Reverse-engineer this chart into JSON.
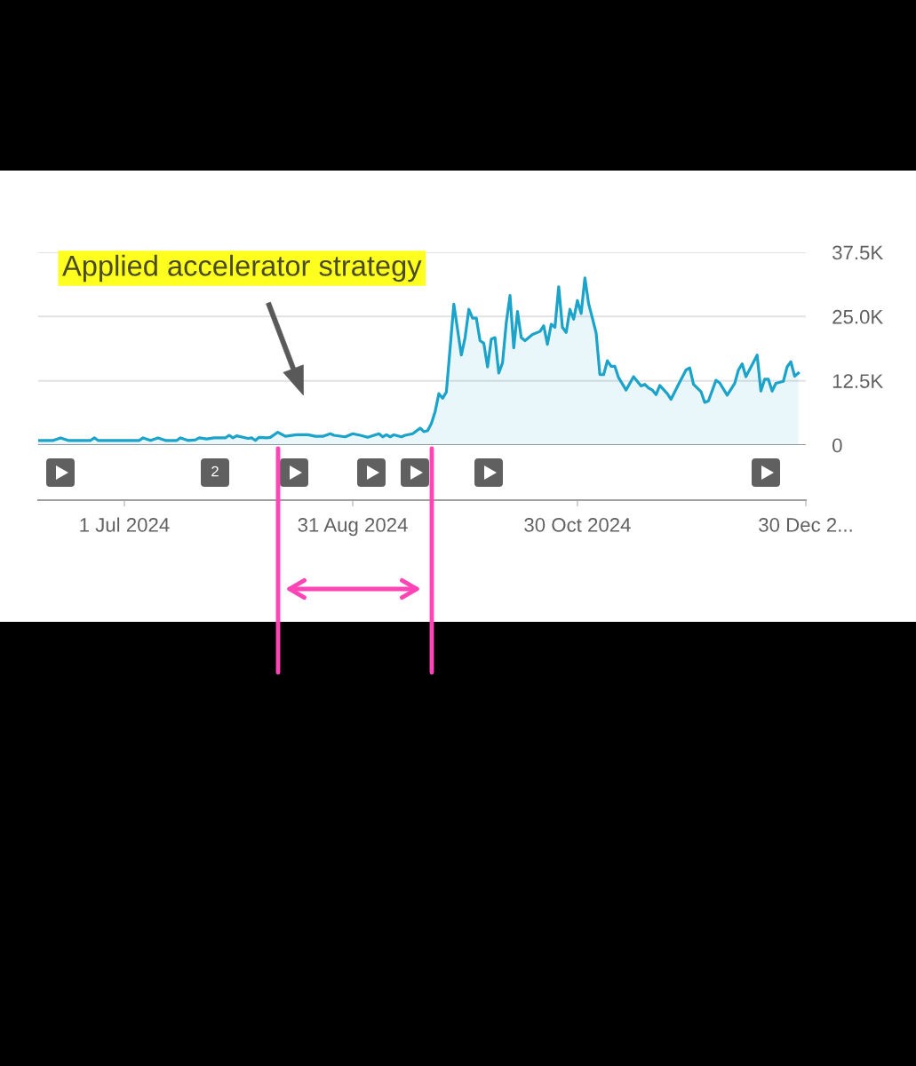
{
  "chart_data": {
    "type": "area",
    "x": [
      "2024-06-08",
      "2024-06-12",
      "2024-06-14",
      "2024-06-16",
      "2024-06-22",
      "2024-06-23",
      "2024-06-24",
      "2024-07-05",
      "2024-07-06",
      "2024-07-08",
      "2024-07-10",
      "2024-07-12",
      "2024-07-15",
      "2024-07-16",
      "2024-07-18",
      "2024-07-20",
      "2024-07-21",
      "2024-07-23",
      "2024-07-25",
      "2024-07-28",
      "2024-07-29",
      "2024-07-30",
      "2024-07-31",
      "2024-08-03",
      "2024-08-04",
      "2024-08-05",
      "2024-08-06",
      "2024-08-08",
      "2024-08-09",
      "2024-08-11",
      "2024-08-13",
      "2024-08-16",
      "2024-08-19",
      "2024-08-21",
      "2024-08-23",
      "2024-08-25",
      "2024-08-26",
      "2024-08-29",
      "2024-08-31",
      "2024-09-02",
      "2024-09-04",
      "2024-09-07",
      "2024-09-08",
      "2024-09-09",
      "2024-09-10",
      "2024-09-11",
      "2024-09-13",
      "2024-09-14",
      "2024-09-16",
      "2024-09-18",
      "2024-09-19",
      "2024-09-20",
      "2024-09-21",
      "2024-09-22",
      "2024-09-23",
      "2024-09-24",
      "2024-09-25",
      "2024-09-27",
      "2024-09-29",
      "2024-09-30",
      "2024-10-01",
      "2024-10-02",
      "2024-10-03",
      "2024-10-04",
      "2024-10-05",
      "2024-10-06",
      "2024-10-07",
      "2024-10-08",
      "2024-10-09",
      "2024-10-10",
      "2024-10-11",
      "2024-10-12",
      "2024-10-13",
      "2024-10-14",
      "2024-10-15",
      "2024-10-16",
      "2024-10-18",
      "2024-10-20",
      "2024-10-21",
      "2024-10-22",
      "2024-10-23",
      "2024-10-24",
      "2024-10-25",
      "2024-10-26",
      "2024-10-27",
      "2024-10-28",
      "2024-10-29",
      "2024-10-30",
      "2024-10-31",
      "2024-11-01",
      "2024-11-02",
      "2024-11-03",
      "2024-11-04",
      "2024-11-05",
      "2024-11-06",
      "2024-11-07",
      "2024-11-08",
      "2024-11-09",
      "2024-11-10",
      "2024-11-12",
      "2024-11-14",
      "2024-11-16",
      "2024-11-17",
      "2024-11-18",
      "2024-11-19",
      "2024-11-20",
      "2024-11-21",
      "2024-11-23",
      "2024-11-24",
      "2024-11-26",
      "2024-11-28",
      "2024-11-29",
      "2024-11-30",
      "2024-12-02",
      "2024-12-03",
      "2024-12-04",
      "2024-12-06",
      "2024-12-07",
      "2024-12-09",
      "2024-12-11",
      "2024-12-12",
      "2024-12-13",
      "2024-12-14",
      "2024-12-17",
      "2024-12-18",
      "2024-12-19",
      "2024-12-20",
      "2024-12-21",
      "2024-12-22",
      "2024-12-24",
      "2024-12-25",
      "2024-12-26",
      "2024-12-27",
      "2024-12-28"
    ],
    "series": [
      {
        "color": "#1ba3c9",
        "values": [
          900,
          900,
          1400,
          900,
          900,
          1400,
          900,
          900,
          1400,
          900,
          1400,
          900,
          900,
          1400,
          900,
          1000,
          1400,
          1200,
          1400,
          1400,
          1900,
          1400,
          1800,
          1300,
          1400,
          900,
          1500,
          1400,
          1500,
          2500,
          1700,
          2000,
          2000,
          1700,
          1700,
          2200,
          1900,
          1600,
          2200,
          1900,
          1500,
          2200,
          1600,
          2000,
          1600,
          2000,
          1600,
          1900,
          2200,
          3300,
          2600,
          2800,
          4200,
          6500,
          10000,
          9100,
          10300,
          27400,
          17500,
          20900,
          26400,
          24700,
          24700,
          20300,
          19800,
          15200,
          20600,
          20900,
          14000,
          16000,
          23800,
          29100,
          18900,
          26000,
          20900,
          20300,
          21500,
          22100,
          23200,
          19600,
          23500,
          22900,
          30800,
          22900,
          21900,
          26400,
          24500,
          28100,
          25600,
          32500,
          27500,
          24700,
          21800,
          13700,
          13700,
          16400,
          15300,
          15300,
          13100,
          10700,
          13300,
          11500,
          11800,
          11100,
          10700,
          9800,
          11600,
          10000,
          8900,
          11800,
          14600,
          15000,
          11800,
          10400,
          8300,
          8600,
          12600,
          12100,
          9700,
          12000,
          14600,
          15800,
          13300,
          17500,
          10500,
          12800,
          12800,
          10500,
          12000,
          12400,
          15200,
          16200,
          13400,
          14000
        ]
      }
    ],
    "xlim": [
      "2024-06-08",
      "2024-12-30"
    ],
    "xticks": [
      {
        "value": "2024-07-01",
        "label": "1 Jul 2024"
      },
      {
        "value": "2024-08-31",
        "label": "31 Aug 2024"
      },
      {
        "value": "2024-10-30",
        "label": "30 Oct 2024"
      },
      {
        "value": "2024-12-30",
        "label": "30 Dec 2..."
      }
    ],
    "ylim": [
      0,
      37500
    ],
    "yticks": [
      0,
      {
        "value": 12500,
        "label": "12.5K"
      },
      {
        "value": 25000,
        "label": "25.0K"
      },
      {
        "value": 37500,
        "label": "37.5K"
      }
    ],
    "grid": "y",
    "annotations": [
      "Applied accelerator strategy",
      "2"
    ]
  }
}
